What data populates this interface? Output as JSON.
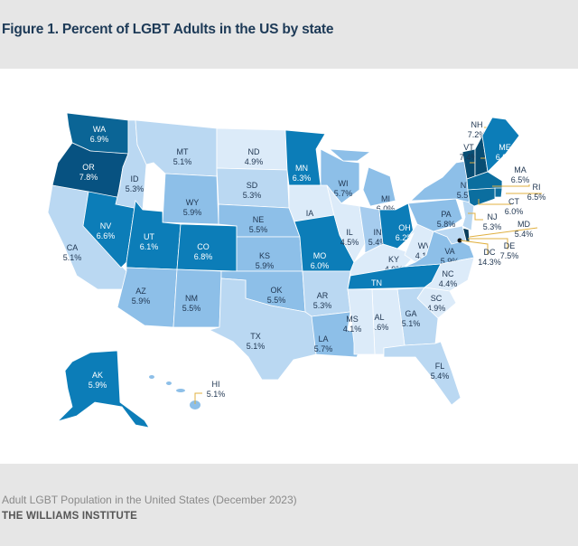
{
  "title": "Figure 1. Percent of LGBT Adults in the US by state",
  "footer": {
    "source": "Adult LGBT Population in the United States (December 2023)",
    "org": "THE WILLIAMS INSTITUTE"
  },
  "colors": {
    "leader_line": "#e0b040",
    "label_dark": "#1f3550",
    "label_light": "#ffffff"
  },
  "map": {
    "states": [
      {
        "code": "WA",
        "value": "6.9%",
        "fill": "#0b6596"
      },
      {
        "code": "OR",
        "value": "7.8%",
        "fill": "#075281"
      },
      {
        "code": "CA",
        "value": "5.1%",
        "fill": "#bad8f2"
      },
      {
        "code": "NV",
        "value": "6.6%",
        "fill": "#0c7db8"
      },
      {
        "code": "ID",
        "value": "5.3%",
        "fill": "#bad8f2"
      },
      {
        "code": "MT",
        "value": "5.1%",
        "fill": "#bad8f2"
      },
      {
        "code": "WY",
        "value": "5.9%",
        "fill": "#8dbfe8"
      },
      {
        "code": "UT",
        "value": "6.1%",
        "fill": "#0c7db8"
      },
      {
        "code": "CO",
        "value": "6.8%",
        "fill": "#0c7db8"
      },
      {
        "code": "AZ",
        "value": "5.9%",
        "fill": "#8dbfe8"
      },
      {
        "code": "NM",
        "value": "5.5%",
        "fill": "#8dbfe8"
      },
      {
        "code": "ND",
        "value": "4.9%",
        "fill": "#dcebf9"
      },
      {
        "code": "SD",
        "value": "5.3%",
        "fill": "#bad8f2"
      },
      {
        "code": "NE",
        "value": "5.5%",
        "fill": "#8dbfe8"
      },
      {
        "code": "KS",
        "value": "5.9%",
        "fill": "#8dbfe8"
      },
      {
        "code": "OK",
        "value": "5.5%",
        "fill": "#8dbfe8"
      },
      {
        "code": "TX",
        "value": "5.1%",
        "fill": "#bad8f2"
      },
      {
        "code": "MN",
        "value": "6.3%",
        "fill": "#0c7db8"
      },
      {
        "code": "IA",
        "value": "4.7%",
        "fill": "#dcebf9"
      },
      {
        "code": "MO",
        "value": "6.0%",
        "fill": "#0c7db8"
      },
      {
        "code": "AR",
        "value": "5.3%",
        "fill": "#bad8f2"
      },
      {
        "code": "LA",
        "value": "5.7%",
        "fill": "#8dbfe8"
      },
      {
        "code": "WI",
        "value": "5.7%",
        "fill": "#8dbfe8"
      },
      {
        "code": "MI",
        "value": "6.0%",
        "fill": "#8dbfe8"
      },
      {
        "code": "IL",
        "value": "4.5%",
        "fill": "#dcebf9"
      },
      {
        "code": "IN",
        "value": "5.4%",
        "fill": "#a6ccee"
      },
      {
        "code": "OH",
        "value": "6.2%",
        "fill": "#0c7db8"
      },
      {
        "code": "KY",
        "value": "4.9%",
        "fill": "#dcebf9"
      },
      {
        "code": "TN",
        "value": "6.3%",
        "fill": "#0c7db8"
      },
      {
        "code": "WV",
        "value": "4.1%",
        "fill": "#dcebf9"
      },
      {
        "code": "VA",
        "value": "5.9%",
        "fill": "#8dbfe8"
      },
      {
        "code": "NC",
        "value": "4.4%",
        "fill": "#dcebf9"
      },
      {
        "code": "SC",
        "value": "4.9%",
        "fill": "#dcebf9"
      },
      {
        "code": "GA",
        "value": "5.1%",
        "fill": "#bad8f2"
      },
      {
        "code": "AL",
        "value": "4.6%",
        "fill": "#dcebf9"
      },
      {
        "code": "MS",
        "value": "4.1%",
        "fill": "#dcebf9"
      },
      {
        "code": "FL",
        "value": "5.4%",
        "fill": "#bad8f2"
      },
      {
        "code": "PA",
        "value": "5.8%",
        "fill": "#8dbfe8"
      },
      {
        "code": "NY",
        "value": "5.5%",
        "fill": "#8dbfe8"
      },
      {
        "code": "NJ",
        "value": "5.3%",
        "fill": "#bad8f2"
      },
      {
        "code": "DE",
        "value": "7.5%",
        "fill": "#0a3e5c"
      },
      {
        "code": "MD",
        "value": "5.4%",
        "fill": "#bad8f2"
      },
      {
        "code": "DC",
        "value": "14.3%",
        "fill": "#111111"
      },
      {
        "code": "VT",
        "value": "7.4%",
        "fill": "#084d73"
      },
      {
        "code": "NH",
        "value": "7.2%",
        "fill": "#084d73"
      },
      {
        "code": "ME",
        "value": "6.8%",
        "fill": "#0c7db8"
      },
      {
        "code": "MA",
        "value": "6.5%",
        "fill": "#0b6e9f"
      },
      {
        "code": "RI",
        "value": "6.5%",
        "fill": "#0b6e9f"
      },
      {
        "code": "CT",
        "value": "6.0%",
        "fill": "#0b6e9f"
      },
      {
        "code": "AK",
        "value": "5.9%",
        "fill": "#0c7db8"
      },
      {
        "code": "HI",
        "value": "5.1%",
        "fill": "#8dbfe8"
      }
    ]
  }
}
